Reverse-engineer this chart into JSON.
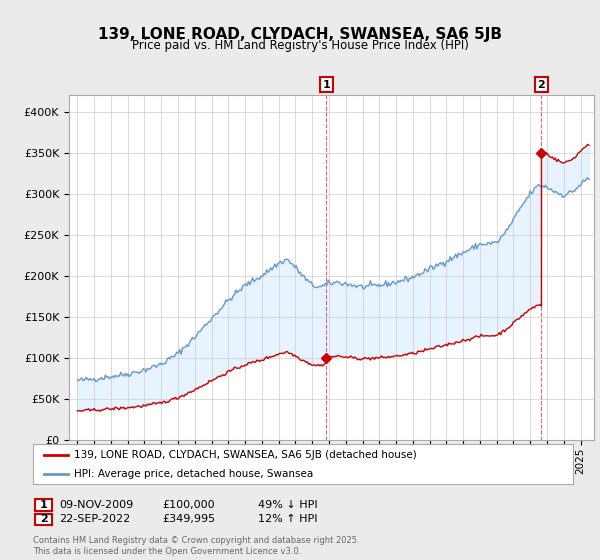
{
  "title": "139, LONE ROAD, CLYDACH, SWANSEA, SA6 5JB",
  "subtitle": "Price paid vs. HM Land Registry's House Price Index (HPI)",
  "ylim": [
    0,
    420000
  ],
  "yticks": [
    0,
    50000,
    100000,
    150000,
    200000,
    250000,
    300000,
    350000,
    400000
  ],
  "line1_color": "#cc0000",
  "line2_color": "#6699cc",
  "fill_color": "#ddeeff",
  "background_color": "#ebebeb",
  "plot_bg_color": "#ffffff",
  "legend1_label": "139, LONE ROAD, CLYDACH, SWANSEA, SA6 5JB (detached house)",
  "legend2_label": "HPI: Average price, detached house, Swansea",
  "marker1_x": 2009.833,
  "marker1_price": 100000,
  "marker1_label": "09-NOV-2009",
  "marker1_price_label": "£100,000",
  "marker1_hpi_label": "49% ↓ HPI",
  "marker2_x": 2022.667,
  "marker2_price": 349995,
  "marker2_label": "22-SEP-2022",
  "marker2_price_label": "£349,995",
  "marker2_hpi_label": "12% ↑ HPI",
  "footer": "Contains HM Land Registry data © Crown copyright and database right 2025.\nThis data is licensed under the Open Government Licence v3.0.",
  "grid_color": "#cccccc",
  "xmin": 1994.5,
  "xmax": 2025.8
}
